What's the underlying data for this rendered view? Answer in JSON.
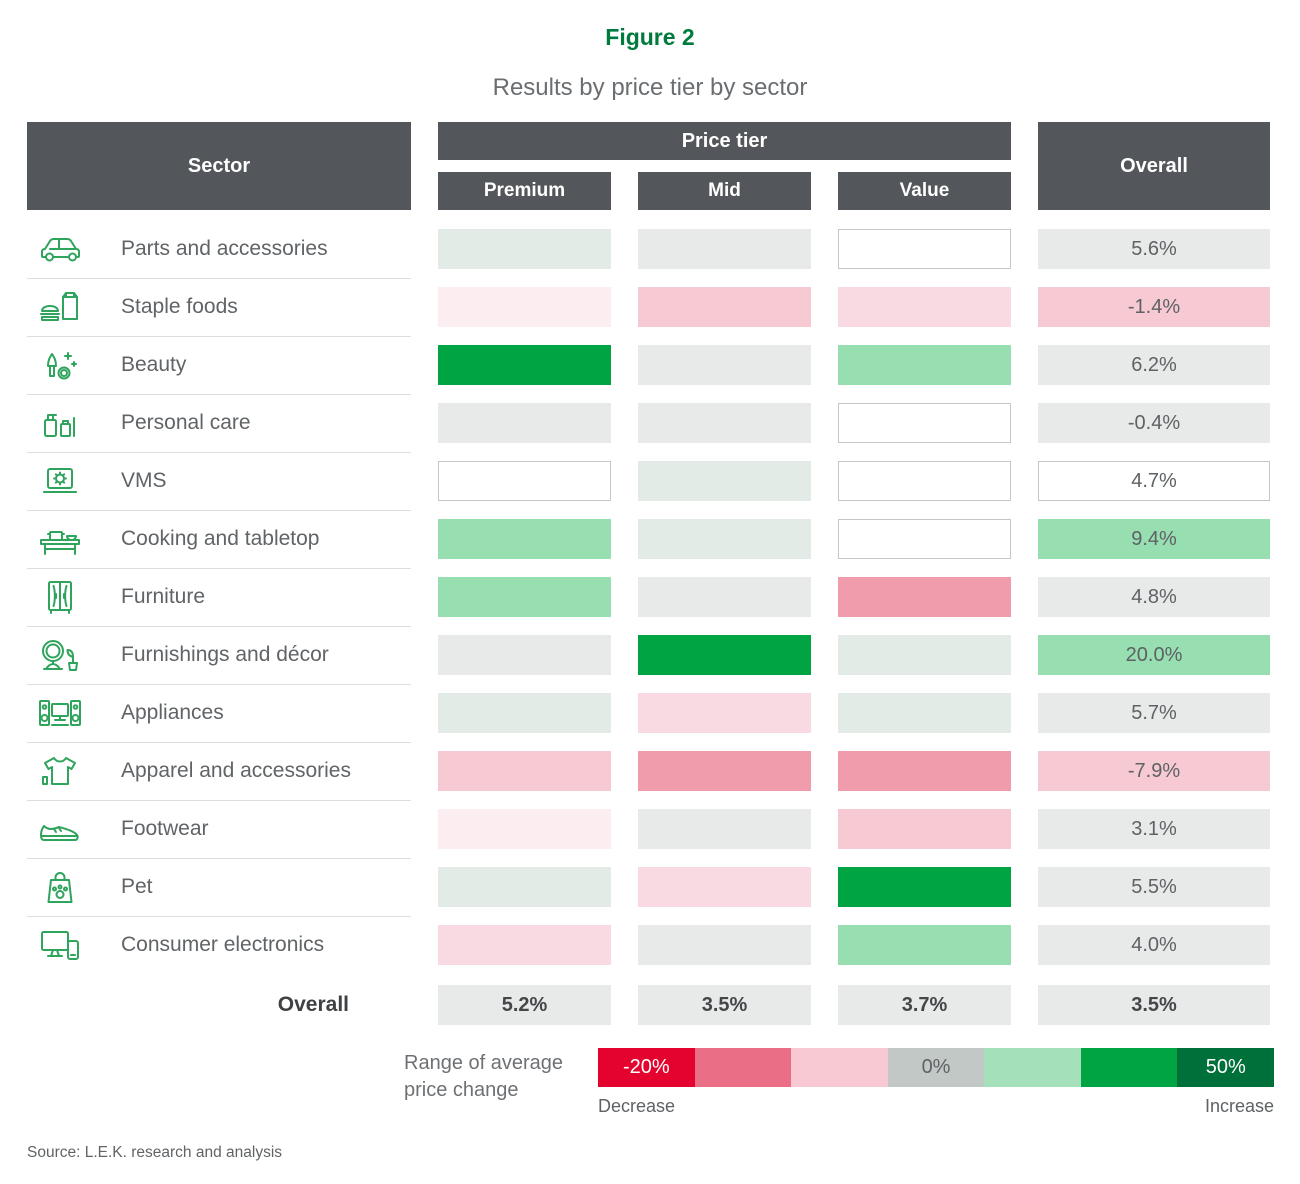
{
  "figure": {
    "label": "Figure 2",
    "title": "Results by price tier by sector"
  },
  "table": {
    "sector_header": "Sector",
    "price_tier_header": "Price tier",
    "tier_columns": [
      "Premium",
      "Mid",
      "Value"
    ],
    "overall_header": "Overall",
    "rows": [
      {
        "sector": "Parts and accessories",
        "icon": "car-icon",
        "cells": {
          "premium": "green-tint",
          "mid": "neutral",
          "value": "none"
        },
        "overall": {
          "text": "5.6%",
          "bin": "neutral"
        }
      },
      {
        "sector": "Staple foods",
        "icon": "staple-foods-icon",
        "cells": {
          "premium": "pink-50",
          "mid": "pink-200",
          "value": "pink-100"
        },
        "overall": {
          "text": "-1.4%",
          "bin": "pink-200"
        }
      },
      {
        "sector": "Beauty",
        "icon": "beauty-icon",
        "cells": {
          "premium": "green-strong",
          "mid": "neutral",
          "value": "green-mid"
        },
        "overall": {
          "text": "6.2%",
          "bin": "neutral"
        }
      },
      {
        "sector": "Personal care",
        "icon": "personal-care-icon",
        "cells": {
          "premium": "neutral",
          "mid": "neutral",
          "value": "none"
        },
        "overall": {
          "text": "-0.4%",
          "bin": "neutral"
        }
      },
      {
        "sector": "VMS",
        "icon": "vms-icon",
        "cells": {
          "premium": "none",
          "mid": "green-tint",
          "value": "none"
        },
        "overall": {
          "text": "4.7%",
          "bin": "none"
        }
      },
      {
        "sector": "Cooking and tabletop",
        "icon": "cooking-tabletop-icon",
        "cells": {
          "premium": "green-mid",
          "mid": "green-tint",
          "value": "none"
        },
        "overall": {
          "text": "9.4%",
          "bin": "green-mid"
        }
      },
      {
        "sector": "Furniture",
        "icon": "furniture-icon",
        "cells": {
          "premium": "green-mid",
          "mid": "neutral",
          "value": "pink-300"
        },
        "overall": {
          "text": "4.8%",
          "bin": "neutral"
        }
      },
      {
        "sector": "Furnishings and décor",
        "icon": "furnishings-decor-icon",
        "cells": {
          "premium": "neutral",
          "mid": "green-strong",
          "value": "green-tint"
        },
        "overall": {
          "text": "20.0%",
          "bin": "green-mid"
        }
      },
      {
        "sector": "Appliances",
        "icon": "appliances-icon",
        "cells": {
          "premium": "green-tint",
          "mid": "pink-100",
          "value": "green-tint"
        },
        "overall": {
          "text": "5.7%",
          "bin": "neutral"
        }
      },
      {
        "sector": "Apparel and accessories",
        "icon": "apparel-icon",
        "cells": {
          "premium": "pink-200",
          "mid": "pink-300",
          "value": "pink-300"
        },
        "overall": {
          "text": "-7.9%",
          "bin": "pink-200"
        }
      },
      {
        "sector": "Footwear",
        "icon": "footwear-icon",
        "cells": {
          "premium": "pink-50",
          "mid": "neutral",
          "value": "pink-200"
        },
        "overall": {
          "text": "3.1%",
          "bin": "neutral"
        }
      },
      {
        "sector": "Pet",
        "icon": "pet-icon",
        "cells": {
          "premium": "green-tint",
          "mid": "pink-100",
          "value": "green-strong"
        },
        "overall": {
          "text": "5.5%",
          "bin": "neutral"
        }
      },
      {
        "sector": "Consumer electronics",
        "icon": "consumer-electronics-icon",
        "cells": {
          "premium": "pink-100",
          "mid": "neutral",
          "value": "green-mid"
        },
        "overall": {
          "text": "4.0%",
          "bin": "neutral"
        }
      }
    ],
    "overall_row": {
      "label": "Overall",
      "premium": "5.2%",
      "mid": "3.5%",
      "value": "3.7%",
      "overall": "3.5%",
      "bin": "neutral"
    }
  },
  "palette": {
    "green-strong": "#00A443",
    "green-mid": "#97DEB1",
    "green-tint": "#E3EBE6",
    "neutral": "#E8EAE9",
    "pink-50": "#FCEDF1",
    "pink-100": "#F9DAE2",
    "pink-200": "#F7C9D3",
    "pink-300": "#F09CAD",
    "none": "#FFFFFF",
    "empty_cell_border": "#C3C7C7",
    "header_bg": "#53565A",
    "figure_label_color": "#007A3D",
    "icon_stroke": "#2FA45C"
  },
  "legend": {
    "label": "Range of average price change",
    "segments": [
      {
        "color": "#E4032E",
        "label": "-20%",
        "label_color": "#FFFFFF"
      },
      {
        "color": "#EB6E87",
        "label": "",
        "label_color": ""
      },
      {
        "color": "#F8C9D3",
        "label": "",
        "label_color": ""
      },
      {
        "color": "#C2C8C6",
        "label": "0%",
        "label_color": "#5E6265"
      },
      {
        "color": "#A4E0BA",
        "label": "",
        "label_color": ""
      },
      {
        "color": "#00A443",
        "label": "",
        "label_color": ""
      },
      {
        "color": "#00703A",
        "label": "50%",
        "label_color": "#FFFFFF"
      }
    ],
    "decrease_label": "Decrease",
    "increase_label": "Increase"
  },
  "source": "Source: L.E.K. research and analysis",
  "chart_data": {
    "type": "heatmap",
    "figure_label": "Figure 2",
    "title": "Results by price tier by sector",
    "columns": [
      "Premium",
      "Mid",
      "Value",
      "Overall"
    ],
    "sectors": [
      "Parts and accessories",
      "Staple foods",
      "Beauty",
      "Personal care",
      "VMS",
      "Cooking and tabletop",
      "Furniture",
      "Furnishings and décor",
      "Appliances",
      "Apparel and accessories",
      "Footwear",
      "Pet",
      "Consumer electronics"
    ],
    "overall_pct_by_sector": [
      5.6,
      -1.4,
      6.2,
      -0.4,
      4.7,
      9.4,
      4.8,
      20.0,
      5.7,
      -7.9,
      3.1,
      5.5,
      4.0
    ],
    "overall_row_pct": {
      "Premium": 5.2,
      "Mid": 3.5,
      "Value": 3.7,
      "Overall": 3.5
    },
    "cell_color_bins": [
      [
        "green-tint",
        "neutral",
        "none",
        "neutral"
      ],
      [
        "pink-50",
        "pink-200",
        "pink-100",
        "pink-200"
      ],
      [
        "green-strong",
        "neutral",
        "green-mid",
        "neutral"
      ],
      [
        "neutral",
        "neutral",
        "none",
        "neutral"
      ],
      [
        "none",
        "green-tint",
        "none",
        "none"
      ],
      [
        "green-mid",
        "green-tint",
        "none",
        "green-mid"
      ],
      [
        "green-mid",
        "neutral",
        "pink-300",
        "neutral"
      ],
      [
        "neutral",
        "green-strong",
        "green-tint",
        "green-mid"
      ],
      [
        "green-tint",
        "pink-100",
        "green-tint",
        "neutral"
      ],
      [
        "pink-200",
        "pink-300",
        "pink-300",
        "pink-200"
      ],
      [
        "pink-50",
        "neutral",
        "pink-200",
        "neutral"
      ],
      [
        "green-tint",
        "pink-100",
        "green-strong",
        "neutral"
      ],
      [
        "pink-100",
        "neutral",
        "green-mid",
        "neutral"
      ]
    ],
    "color_scale": {
      "min_label": "-20%",
      "mid_label": "0%",
      "max_label": "50%",
      "decrease": "Decrease",
      "increase": "Increase"
    },
    "note_on_bins": "Cells without printed numbers are encoded by color bin; bin 'none' renders as a white cell with gray border"
  }
}
